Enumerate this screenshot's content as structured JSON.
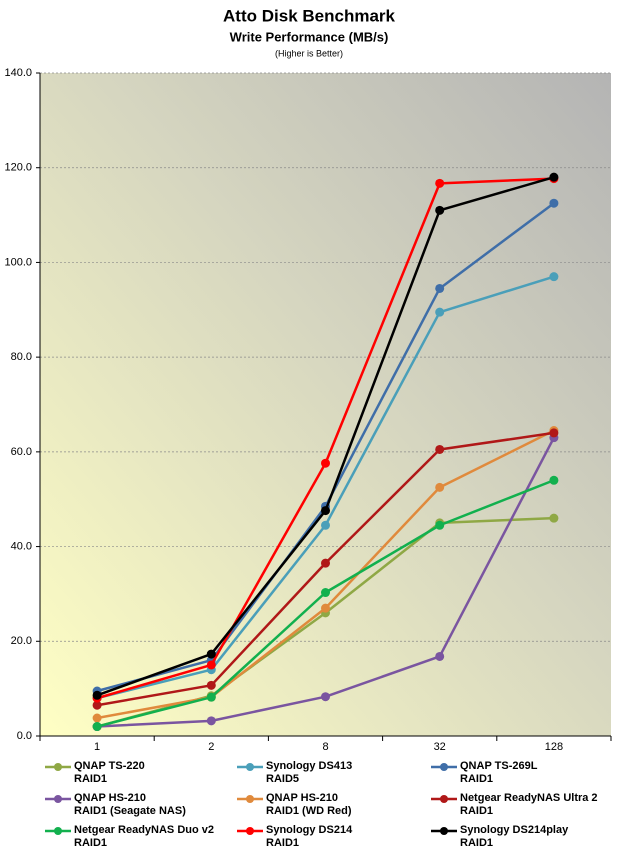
{
  "chart_data": {
    "type": "line",
    "title": "Atto Disk Benchmark",
    "subtitle": "Write Performance (MB/s)",
    "note": "(Higher is Better)",
    "categories": [
      "1",
      "2",
      "8",
      "32",
      "128"
    ],
    "ylim": [
      0,
      140
    ],
    "yticks": [
      {
        "value": 0,
        "label": "0.0"
      },
      {
        "value": 20,
        "label": "20.0"
      },
      {
        "value": 40,
        "label": "40.0"
      },
      {
        "value": 60,
        "label": "60.0"
      },
      {
        "value": 80,
        "label": "80.0"
      },
      {
        "value": 100,
        "label": "100.0"
      },
      {
        "value": 120,
        "label": "120.0"
      },
      {
        "value": 140,
        "label": "140.0"
      }
    ],
    "grid": true,
    "series": [
      {
        "name": "QNAP TS-220\nRAID1",
        "color": "#8fa845",
        "values": [
          2,
          8.5,
          26,
          45,
          46
        ]
      },
      {
        "name": "Synology DS413\nRAID5",
        "color": "#4a9fb9",
        "values": [
          8,
          14,
          44.5,
          89.5,
          97
        ]
      },
      {
        "name": "QNAP TS-269L\nRAID1",
        "color": "#3f6ea8",
        "values": [
          9.5,
          16,
          48.5,
          94.5,
          112.5
        ]
      },
      {
        "name": "QNAP HS-210\nRAID1 (Seagate NAS)",
        "color": "#7a55a0",
        "values": [
          2,
          3.2,
          8.3,
          16.8,
          63
        ]
      },
      {
        "name": "QNAP HS-210\nRAID1 (WD Red)",
        "color": "#e08a3c",
        "values": [
          3.8,
          8.2,
          27,
          52.5,
          64.5
        ]
      },
      {
        "name": "Netgear ReadyNAS Ultra 2\nRAID1",
        "color": "#b01818",
        "values": [
          6.5,
          10.7,
          36.5,
          60.5,
          64
        ]
      },
      {
        "name": "Netgear ReadyNAS Duo v2\nRAID1",
        "color": "#12b04e",
        "values": [
          2,
          8.2,
          30.3,
          44.5,
          54
        ]
      },
      {
        "name": "Synology DS214\nRAID1",
        "color": "#ff0000",
        "values": [
          8,
          15,
          57.6,
          116.7,
          117.7
        ]
      },
      {
        "name": "Synology DS214play\nRAID1",
        "color": "#000000",
        "values": [
          8.6,
          17.3,
          47.6,
          111,
          118
        ]
      }
    ]
  }
}
